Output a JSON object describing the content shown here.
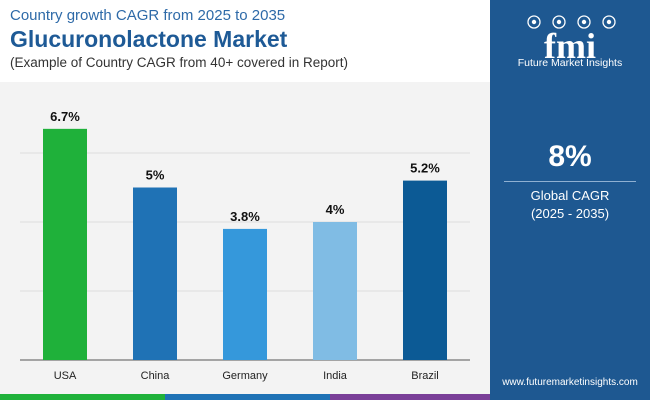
{
  "header": {
    "subtitle": "Country growth CAGR from 2025 to 2035",
    "title": "Glucuronolactone Market",
    "note": "(Example of Country CAGR from 40+ covered in Report)"
  },
  "sidebar": {
    "logo_letters": "fmi",
    "brand_name": "Future Market Insights",
    "kpi_value": "8%",
    "kpi_label": "Global CAGR",
    "kpi_period": "(2025 - 2035)",
    "website": "www.futuremarketinsights.com"
  },
  "colors": {
    "sidebar": "#1e5891",
    "title": "#1e5a96",
    "usa": "#1fb13a",
    "china": "#1f72b5",
    "germany": "#3598db",
    "india": "#80bce4",
    "brazil": "#0c5a95",
    "footer": [
      "#1fb13a",
      "#1f72b5",
      "#7a3f98"
    ]
  },
  "chart_data": {
    "type": "bar",
    "categories": [
      "USA",
      "China",
      "Germany",
      "India",
      "Brazil"
    ],
    "values": [
      6.7,
      5.0,
      3.8,
      4.0,
      5.2
    ],
    "data_labels": [
      "6.7%",
      "5%",
      "3.8%",
      "4%",
      "5.2%"
    ],
    "colors": [
      "#1fb13a",
      "#1f72b5",
      "#3598db",
      "#80bce4",
      "#0c5a95"
    ],
    "ylim": [
      0,
      8
    ],
    "grid": true,
    "title": "",
    "xlabel": "",
    "ylabel": ""
  }
}
